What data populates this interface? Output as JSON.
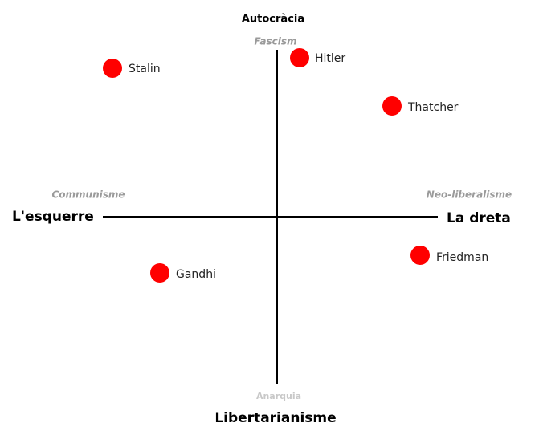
{
  "axes": {
    "top": "Autocràcia",
    "bottom": "Libertarianisme",
    "left": "L'esquerre",
    "right": "La dreta"
  },
  "ideologies": {
    "top": "Fascism",
    "bottom": "Anarquia",
    "left": "Communisme",
    "right": "Neo-liberalisme"
  },
  "people": [
    "Stalin",
    "Hitler",
    "Thatcher",
    "Gandhi",
    "Friedman"
  ]
}
